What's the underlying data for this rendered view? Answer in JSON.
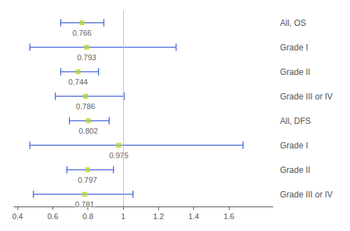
{
  "chart_data": {
    "type": "forest",
    "categories": [
      "All, OS",
      "Grade I",
      "Grade II",
      "Grade III or IV",
      "All, DFS",
      "Grade I",
      "Grade II",
      "Grade III or IV"
    ],
    "values": [
      0.766,
      0.793,
      0.744,
      0.786,
      0.802,
      0.975,
      0.797,
      0.781
    ],
    "ci_lo": [
      0.645,
      0.47,
      0.645,
      0.615,
      0.695,
      0.47,
      0.68,
      0.49
    ],
    "ci_hi": [
      0.89,
      1.3,
      0.86,
      1.005,
      0.92,
      1.68,
      0.945,
      1.055
    ],
    "xlim": [
      0.38,
      1.85
    ],
    "xticks": [
      0.4,
      0.6,
      0.8,
      1,
      1.2,
      1.4,
      1.6
    ],
    "ref_line": 1,
    "data_labels": true,
    "grid": false
  }
}
